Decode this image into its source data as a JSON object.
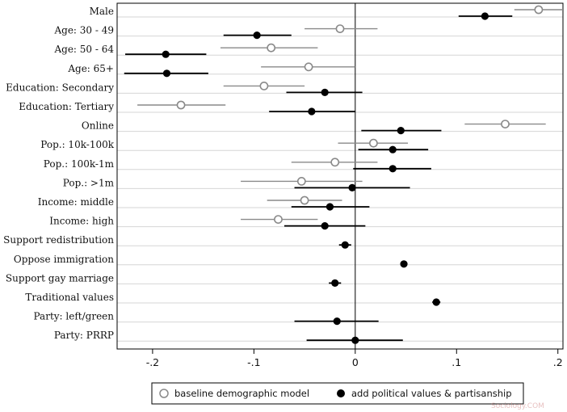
{
  "chart_data": {
    "type": "coefficient-plot",
    "title": "",
    "xlabel": "",
    "ylabel": "",
    "xlim": [
      -0.235,
      0.205
    ],
    "x_ticks": [
      -0.2,
      -0.1,
      0,
      0.1,
      0.2
    ],
    "x_tick_labels": [
      "-.2",
      "-.1",
      "0",
      ".1",
      ".2"
    ],
    "grid": "horizontal",
    "reference_line": 0,
    "categories": [
      "Male",
      "Age: 30 - 49",
      "Age:  50 - 64",
      "Age:  65+",
      "Education: Secondary",
      "Education: Tertiary",
      "Online",
      "Pop.: 10k-100k",
      "Pop.: 100k-1m",
      "Pop.: >1m",
      "Income: middle",
      "Income: high",
      "Support redistribution",
      "Oppose immigration",
      "Support gay marriage",
      "Traditional values",
      "Party: left/green",
      "Party: PRRP"
    ],
    "series": [
      {
        "name": "baseline demographic model",
        "marker": "hollow-circle",
        "color": "#8a8a8a",
        "estimates": [
          0.181,
          -0.015,
          -0.083,
          -0.046,
          -0.09,
          -0.172,
          0.148,
          0.018,
          -0.02,
          -0.053,
          -0.05,
          -0.076,
          null,
          null,
          null,
          null,
          null,
          null
        ],
        "ci_low": [
          0.157,
          -0.05,
          -0.133,
          -0.093,
          -0.13,
          -0.215,
          0.108,
          -0.017,
          -0.063,
          -0.113,
          -0.087,
          -0.113,
          null,
          null,
          null,
          null,
          null,
          null
        ],
        "ci_high": [
          0.205,
          0.022,
          -0.037,
          0.0,
          -0.05,
          -0.128,
          0.188,
          0.052,
          0.022,
          0.007,
          -0.013,
          -0.037,
          null,
          null,
          null,
          null,
          null,
          null
        ]
      },
      {
        "name": "add political values & partisanship",
        "marker": "filled-circle",
        "color": "#000000",
        "estimates": [
          0.128,
          -0.097,
          -0.187,
          -0.186,
          -0.03,
          -0.043,
          0.045,
          0.037,
          0.037,
          -0.003,
          -0.025,
          -0.03,
          -0.01,
          0.048,
          -0.02,
          0.08,
          -0.018,
          0.0
        ],
        "ci_low": [
          0.102,
          -0.13,
          -0.227,
          -0.228,
          -0.068,
          -0.085,
          0.006,
          0.003,
          -0.002,
          -0.06,
          -0.063,
          -0.07,
          -0.016,
          0.045,
          -0.026,
          0.076,
          -0.06,
          -0.048
        ],
        "ci_high": [
          0.155,
          -0.063,
          -0.147,
          -0.145,
          0.007,
          0.0,
          0.085,
          0.072,
          0.075,
          0.054,
          0.014,
          0.01,
          -0.004,
          0.051,
          -0.014,
          0.084,
          0.023,
          0.047
        ]
      }
    ],
    "legend": {
      "position": "bottom",
      "entries": [
        "baseline demographic model",
        "add political values & partisanship"
      ]
    }
  },
  "watermark": "Sociology.COM"
}
